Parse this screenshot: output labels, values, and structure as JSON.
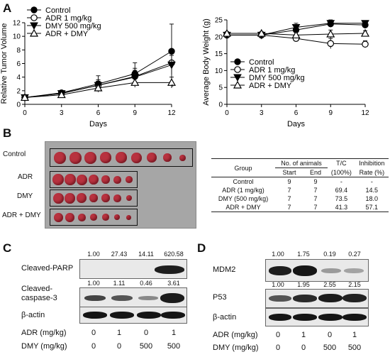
{
  "panels": {
    "a": "A",
    "b": "B",
    "c": "C",
    "d": "D"
  },
  "chart_data": [
    {
      "type": "line",
      "xlabel": "Days",
      "ylabel": "Relative Tumor Volume",
      "x": [
        0,
        3,
        6,
        9,
        12
      ],
      "xlim": [
        0,
        12
      ],
      "ylim": [
        0,
        12
      ],
      "xticks": [
        0,
        3,
        6,
        9,
        12
      ],
      "yticks": [
        0,
        2,
        4,
        6,
        8,
        10,
        12
      ],
      "legend": "top-left",
      "annotation": "*",
      "series": [
        {
          "name": "Control",
          "values": [
            1,
            1.7,
            3.0,
            4.5,
            7.8
          ],
          "err": [
            0.1,
            0.2,
            1.2,
            1.6,
            4.0
          ],
          "marker": "filled-circle"
        },
        {
          "name": "ADR 1 mg/kg",
          "values": [
            1,
            1.6,
            2.8,
            4.1,
            6.1
          ],
          "err": [
            0.1,
            0.2,
            0.8,
            1.2,
            1.5
          ],
          "marker": "open-circle"
        },
        {
          "name": "DMY 500 mg/kg",
          "values": [
            1,
            1.6,
            2.8,
            4.0,
            5.8
          ],
          "err": [
            0.1,
            0.2,
            0.6,
            1.0,
            1.4
          ],
          "marker": "filled-triangle-down"
        },
        {
          "name": "ADR + DMY",
          "values": [
            1,
            1.4,
            2.4,
            3.2,
            3.2
          ],
          "err": [
            0.1,
            0.2,
            0.4,
            0.7,
            0.8
          ],
          "marker": "open-triangle-up"
        }
      ]
    },
    {
      "type": "line",
      "xlabel": "Days",
      "ylabel": "Average Body Weight (g)",
      "x": [
        0,
        3,
        6,
        9,
        12
      ],
      "xlim": [
        0,
        12
      ],
      "ylim": [
        0,
        25
      ],
      "xticks": [
        0,
        3,
        6,
        9,
        12
      ],
      "yticks": [
        0,
        5,
        10,
        15,
        20,
        25
      ],
      "legend": "center-left",
      "series": [
        {
          "name": "Control",
          "values": [
            20.5,
            20.5,
            22.0,
            23.8,
            23.5
          ],
          "err": [
            0.5,
            0.5,
            1.2,
            0.8,
            1.0
          ],
          "marker": "filled-circle"
        },
        {
          "name": "ADR 1 mg/kg",
          "values": [
            20.5,
            20.5,
            19.5,
            18.0,
            17.8
          ],
          "err": [
            0.5,
            0.5,
            0.8,
            1.5,
            1.0
          ],
          "marker": "open-circle"
        },
        {
          "name": "DMY 500 mg/kg",
          "values": [
            20.5,
            20.5,
            22.8,
            24.0,
            24.0
          ],
          "err": [
            0.5,
            0.5,
            1.2,
            1.0,
            0.8
          ],
          "marker": "filled-triangle-down"
        },
        {
          "name": "ADR + DMY",
          "values": [
            21.0,
            21.0,
            20.5,
            20.8,
            21.0
          ],
          "err": [
            0.5,
            0.5,
            1.0,
            1.2,
            0.8
          ],
          "marker": "open-triangle-up"
        }
      ]
    },
    {
      "type": "table",
      "header": {
        "group": "Group",
        "animals": "No. of animals",
        "start": "Start",
        "end": "End",
        "tc": "T/C",
        "tc_unit": "(100%)",
        "inh": "Inhibition",
        "inh_unit": "Rate (%)"
      },
      "rows": [
        {
          "group": "Control",
          "start": "9",
          "end": "9",
          "tc": "-",
          "inh": "-"
        },
        {
          "group": "ADR (1 mg/kg)",
          "start": "7",
          "end": "7",
          "tc": "69.4",
          "inh": "14.5"
        },
        {
          "group": "DMY (500 mg/kg)",
          "start": "7",
          "end": "7",
          "tc": "73.5",
          "inh": "18.0"
        },
        {
          "group": "ADR + DMY",
          "start": "7",
          "end": "7",
          "tc": "41.3",
          "inh": "57.1"
        }
      ]
    }
  ],
  "tumor_photo": {
    "rows": [
      {
        "label": "Control",
        "count": 9
      },
      {
        "label": "ADR",
        "count": 7
      },
      {
        "label": "DMY",
        "count": 7
      },
      {
        "label": "ADR + DMY",
        "count": 7
      }
    ],
    "tissue_color": "#b8323f"
  },
  "blot_c": {
    "parp_label": "Cleaved-PARP",
    "parp_quant": [
      "1.00",
      "27.43",
      "14.11",
      "620.58"
    ],
    "casp_label_1": "Cleaved-",
    "casp_label_2": "caspase-3",
    "casp_quant": [
      "1.00",
      "1.11",
      "0.46",
      "3.61"
    ],
    "actin_label": "β-actin",
    "adr_label": "ADR (mg/kg)",
    "dmy_label": "DMY (mg/kg)",
    "adr_values": [
      "0",
      "1",
      "0",
      "1"
    ],
    "dmy_values": [
      "0",
      "0",
      "500",
      "500"
    ]
  },
  "blot_d": {
    "mdm2_label": "MDM2",
    "mdm2_quant": [
      "1.00",
      "1.75",
      "0.19",
      "0.27"
    ],
    "p53_label": "P53",
    "p53_quant": [
      "1.00",
      "1.95",
      "2.55",
      "2.15"
    ],
    "actin_label": "β-actin",
    "adr_label": "ADR (mg/kg)",
    "dmy_label": "DMY (mg/kg)",
    "adr_values": [
      "0",
      "1",
      "0",
      "1"
    ],
    "dmy_values": [
      "0",
      "0",
      "500",
      "500"
    ]
  }
}
